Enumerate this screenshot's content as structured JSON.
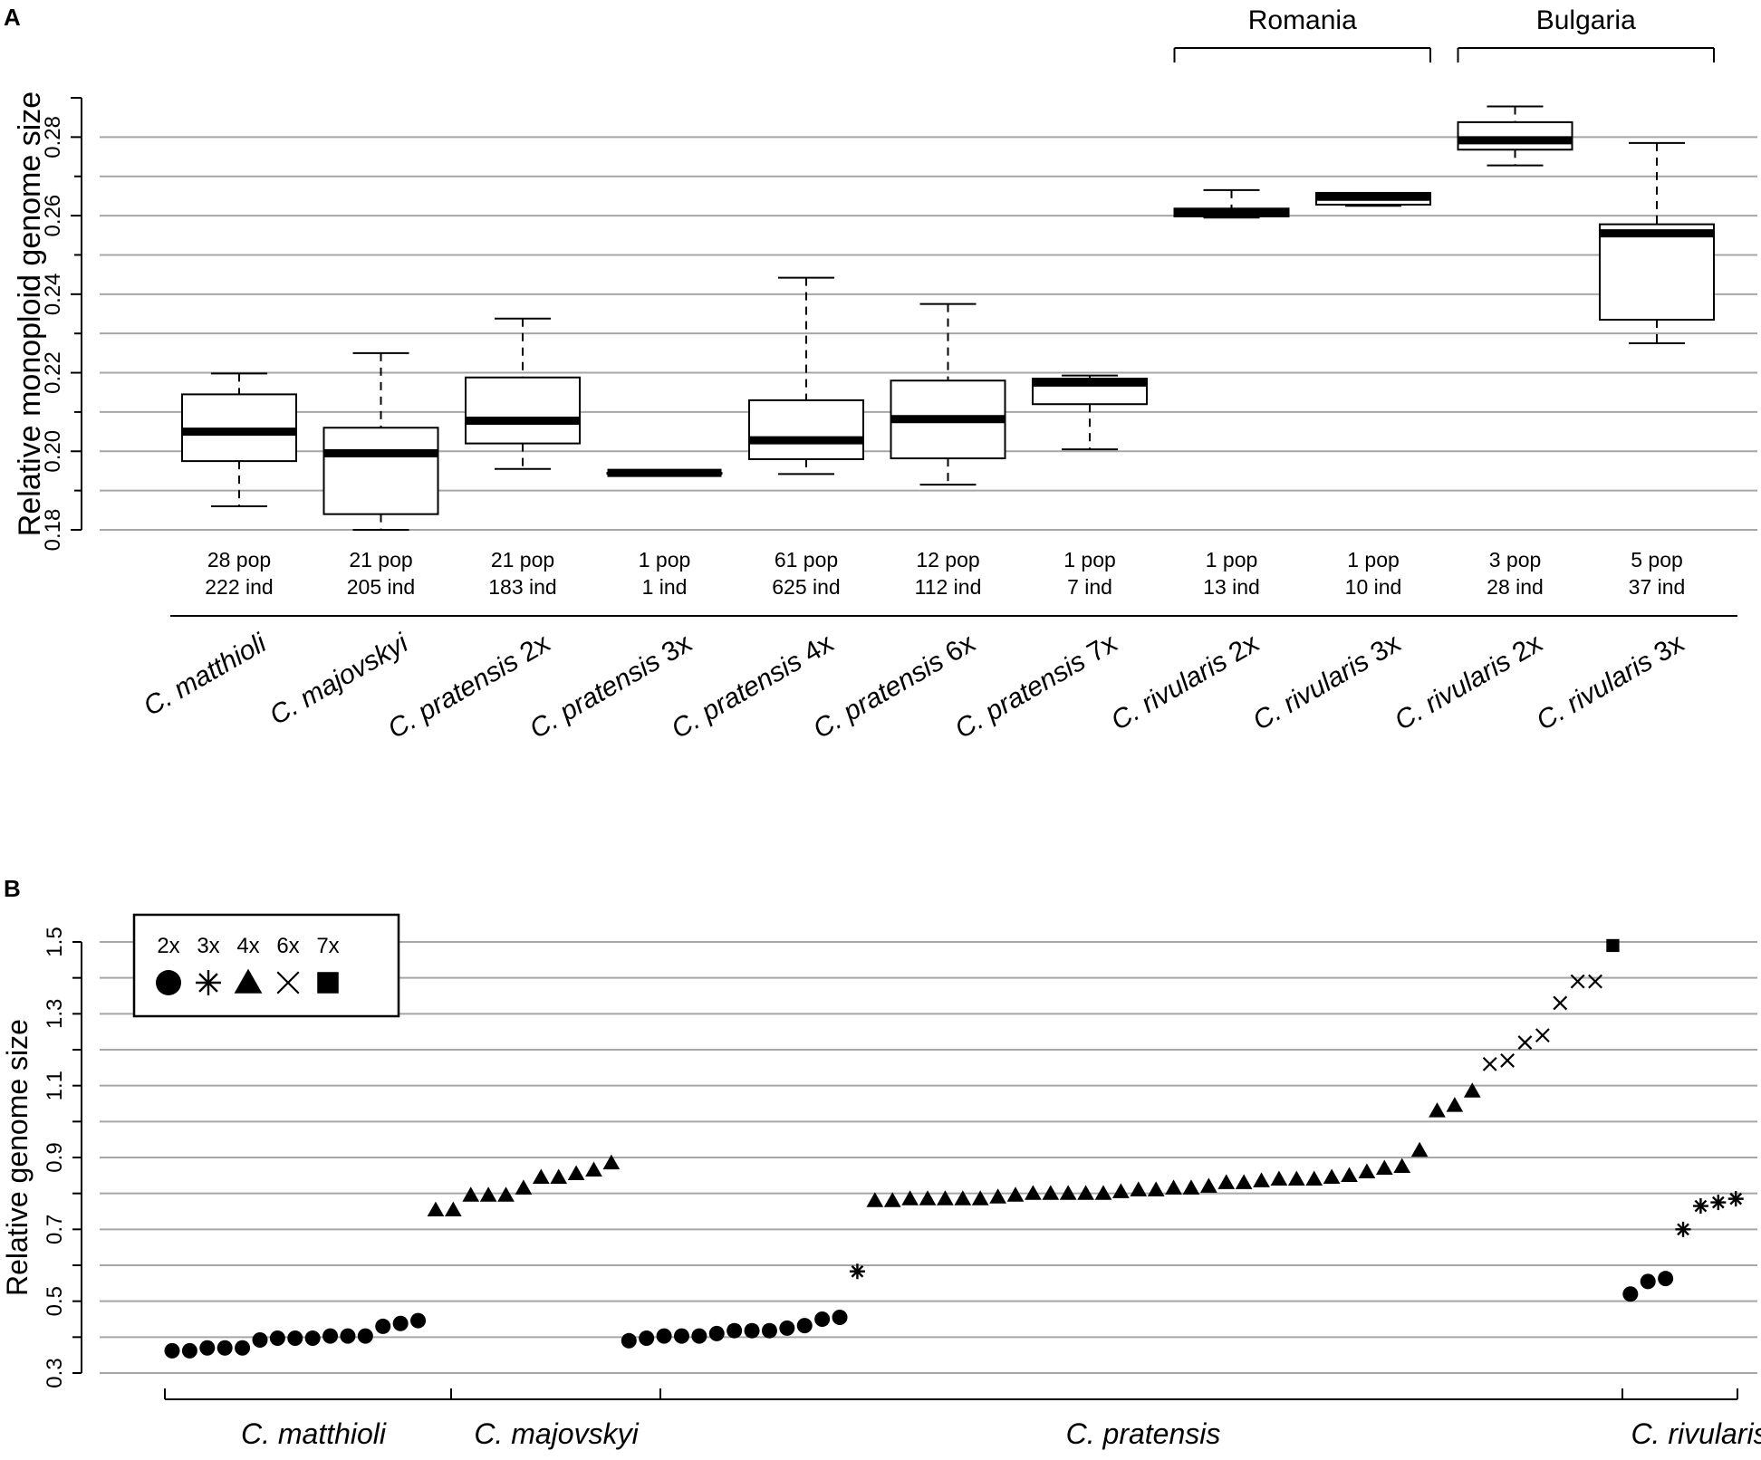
{
  "panel_a": {
    "label": "A"
  },
  "panel_b": {
    "label": "B"
  },
  "chart_data": [
    {
      "type": "box",
      "title": "",
      "ylabel": "Relative monoploid genome size",
      "ylim": [
        0.18,
        0.29
      ],
      "yticks": [
        "0.18",
        "0.20",
        "0.22",
        "0.24",
        "0.26",
        "0.28"
      ],
      "group_headers": [
        {
          "label": "Romania",
          "from": 8,
          "to": 9
        },
        {
          "label": "Bulgaria",
          "from": 10,
          "to": 11
        }
      ],
      "groups": [
        {
          "species": "C. matthioli",
          "ploidy": "",
          "pop": "28 pop",
          "ind": "222 ind",
          "min": 0.186,
          "q1": 0.1975,
          "median": 0.205,
          "q3": 0.2145,
          "max": 0.2198
        },
        {
          "species": "C. majovskyi",
          "ploidy": "",
          "pop": "21 pop",
          "ind": "205 ind",
          "min": 0.18,
          "q1": 0.184,
          "median": 0.1995,
          "q3": 0.206,
          "max": 0.225
        },
        {
          "species": "C. pratensis",
          "ploidy": " 2x",
          "pop": "21 pop",
          "ind": "183 ind",
          "min": 0.1955,
          "q1": 0.202,
          "median": 0.2078,
          "q3": 0.2188,
          "max": 0.2338
        },
        {
          "species": "C. pratensis",
          "ploidy": " 3x",
          "pop": "1 pop",
          "ind": "1 ind",
          "min": 0.1945,
          "q1": 0.1945,
          "median": 0.1945,
          "q3": 0.1945,
          "max": 0.1945
        },
        {
          "species": "C. pratensis",
          "ploidy": " 4x",
          "pop": "61 pop",
          "ind": "625 ind",
          "min": 0.1942,
          "q1": 0.198,
          "median": 0.2028,
          "q3": 0.213,
          "max": 0.2442
        },
        {
          "species": "C. pratensis",
          "ploidy": " 6x",
          "pop": "12 pop",
          "ind": "112 ind",
          "min": 0.1915,
          "q1": 0.1982,
          "median": 0.2082,
          "q3": 0.218,
          "max": 0.2375
        },
        {
          "species": "C. pratensis",
          "ploidy": " 7x",
          "pop": "1 pop",
          "ind": "7 ind",
          "min": 0.2005,
          "q1": 0.212,
          "median": 0.2175,
          "q3": 0.2185,
          "max": 0.2193
        },
        {
          "species": "C. rivularis",
          "ploidy": " 2x",
          "pop": "1 pop",
          "ind": "13 ind",
          "min": 0.2595,
          "q1": 0.2598,
          "median": 0.2608,
          "q3": 0.2618,
          "max": 0.2665
        },
        {
          "species": "C. rivularis",
          "ploidy": " 3x",
          "pop": "1 pop",
          "ind": "10 ind",
          "min": 0.2625,
          "q1": 0.2628,
          "median": 0.2648,
          "q3": 0.2658,
          "max": 0.2658
        },
        {
          "species": "C. rivularis",
          "ploidy": " 2x",
          "pop": "3 pop",
          "ind": "28 ind",
          "min": 0.2728,
          "q1": 0.2768,
          "median": 0.2792,
          "q3": 0.2838,
          "max": 0.2878
        },
        {
          "species": "C. rivularis",
          "ploidy": " 3x",
          "pop": "5 pop",
          "ind": "37 ind",
          "min": 0.2275,
          "q1": 0.2335,
          "median": 0.2555,
          "q3": 0.2578,
          "max": 0.2785
        }
      ]
    },
    {
      "type": "scatter",
      "title": "",
      "ylabel": "Relative genome size",
      "ylim": [
        0.3,
        1.5
      ],
      "yticks": [
        "0.3",
        "0.5",
        "0.7",
        "0.9",
        "1.1",
        "1.3",
        "1.5"
      ],
      "legend": {
        "position": "top-left",
        "entries": [
          {
            "label": "2x",
            "marker": "circle-icon"
          },
          {
            "label": "3x",
            "marker": "asterisk-icon"
          },
          {
            "label": "4x",
            "marker": "triangle-icon"
          },
          {
            "label": "6x",
            "marker": "cross-icon"
          },
          {
            "label": "7x",
            "marker": "square-icon"
          }
        ]
      },
      "species_groups": [
        {
          "label": "C. matthioli",
          "from": 1,
          "to": 14
        },
        {
          "label": "C. majovskyi",
          "from": 15,
          "to": 24
        },
        {
          "label": "C. pratensis",
          "from": 25,
          "to": 80
        },
        {
          "label": "C. rivularis",
          "from": 81,
          "to": 86
        }
      ],
      "points": [
        {
          "x": 1,
          "y": 0.362,
          "p": "2x"
        },
        {
          "x": 2,
          "y": 0.362,
          "p": "2x"
        },
        {
          "x": 3,
          "y": 0.37,
          "p": "2x"
        },
        {
          "x": 4,
          "y": 0.37,
          "p": "2x"
        },
        {
          "x": 5,
          "y": 0.37,
          "p": "2x"
        },
        {
          "x": 6,
          "y": 0.392,
          "p": "2x"
        },
        {
          "x": 7,
          "y": 0.397,
          "p": "2x"
        },
        {
          "x": 8,
          "y": 0.397,
          "p": "2x"
        },
        {
          "x": 9,
          "y": 0.397,
          "p": "2x"
        },
        {
          "x": 10,
          "y": 0.403,
          "p": "2x"
        },
        {
          "x": 11,
          "y": 0.403,
          "p": "2x"
        },
        {
          "x": 12,
          "y": 0.403,
          "p": "2x"
        },
        {
          "x": 13,
          "y": 0.43,
          "p": "2x"
        },
        {
          "x": 14,
          "y": 0.438,
          "p": "2x"
        },
        {
          "x": 15,
          "y": 0.446,
          "p": "2x"
        },
        {
          "x": 16,
          "y": 0.754,
          "p": "4x"
        },
        {
          "x": 17,
          "y": 0.754,
          "p": "4x"
        },
        {
          "x": 18,
          "y": 0.795,
          "p": "4x"
        },
        {
          "x": 19,
          "y": 0.795,
          "p": "4x"
        },
        {
          "x": 20,
          "y": 0.795,
          "p": "4x"
        },
        {
          "x": 21,
          "y": 0.815,
          "p": "4x"
        },
        {
          "x": 22,
          "y": 0.845,
          "p": "4x"
        },
        {
          "x": 23,
          "y": 0.845,
          "p": "4x"
        },
        {
          "x": 24,
          "y": 0.855,
          "p": "4x"
        },
        {
          "x": 25,
          "y": 0.865,
          "p": "4x"
        },
        {
          "x": 26,
          "y": 0.885,
          "p": "4x"
        },
        {
          "x": 27,
          "y": 0.39,
          "p": "2x"
        },
        {
          "x": 28,
          "y": 0.397,
          "p": "2x"
        },
        {
          "x": 29,
          "y": 0.403,
          "p": "2x"
        },
        {
          "x": 30,
          "y": 0.403,
          "p": "2x"
        },
        {
          "x": 31,
          "y": 0.403,
          "p": "2x"
        },
        {
          "x": 32,
          "y": 0.41,
          "p": "2x"
        },
        {
          "x": 33,
          "y": 0.418,
          "p": "2x"
        },
        {
          "x": 34,
          "y": 0.418,
          "p": "2x"
        },
        {
          "x": 35,
          "y": 0.418,
          "p": "2x"
        },
        {
          "x": 36,
          "y": 0.425,
          "p": "2x"
        },
        {
          "x": 37,
          "y": 0.432,
          "p": "2x"
        },
        {
          "x": 38,
          "y": 0.45,
          "p": "2x"
        },
        {
          "x": 39,
          "y": 0.455,
          "p": "2x"
        },
        {
          "x": 40,
          "y": 0.583,
          "p": "3x"
        },
        {
          "x": 41,
          "y": 0.78,
          "p": "4x"
        },
        {
          "x": 42,
          "y": 0.78,
          "p": "4x"
        },
        {
          "x": 43,
          "y": 0.785,
          "p": "4x"
        },
        {
          "x": 44,
          "y": 0.785,
          "p": "4x"
        },
        {
          "x": 45,
          "y": 0.785,
          "p": "4x"
        },
        {
          "x": 46,
          "y": 0.785,
          "p": "4x"
        },
        {
          "x": 47,
          "y": 0.785,
          "p": "4x"
        },
        {
          "x": 48,
          "y": 0.79,
          "p": "4x"
        },
        {
          "x": 49,
          "y": 0.795,
          "p": "4x"
        },
        {
          "x": 50,
          "y": 0.8,
          "p": "4x"
        },
        {
          "x": 51,
          "y": 0.8,
          "p": "4x"
        },
        {
          "x": 52,
          "y": 0.8,
          "p": "4x"
        },
        {
          "x": 53,
          "y": 0.8,
          "p": "4x"
        },
        {
          "x": 54,
          "y": 0.8,
          "p": "4x"
        },
        {
          "x": 55,
          "y": 0.805,
          "p": "4x"
        },
        {
          "x": 56,
          "y": 0.81,
          "p": "4x"
        },
        {
          "x": 57,
          "y": 0.81,
          "p": "4x"
        },
        {
          "x": 58,
          "y": 0.815,
          "p": "4x"
        },
        {
          "x": 59,
          "y": 0.815,
          "p": "4x"
        },
        {
          "x": 60,
          "y": 0.82,
          "p": "4x"
        },
        {
          "x": 61,
          "y": 0.83,
          "p": "4x"
        },
        {
          "x": 62,
          "y": 0.83,
          "p": "4x"
        },
        {
          "x": 63,
          "y": 0.835,
          "p": "4x"
        },
        {
          "x": 64,
          "y": 0.84,
          "p": "4x"
        },
        {
          "x": 65,
          "y": 0.84,
          "p": "4x"
        },
        {
          "x": 66,
          "y": 0.84,
          "p": "4x"
        },
        {
          "x": 67,
          "y": 0.845,
          "p": "4x"
        },
        {
          "x": 68,
          "y": 0.85,
          "p": "4x"
        },
        {
          "x": 69,
          "y": 0.86,
          "p": "4x"
        },
        {
          "x": 70,
          "y": 0.87,
          "p": "4x"
        },
        {
          "x": 71,
          "y": 0.875,
          "p": "4x"
        },
        {
          "x": 72,
          "y": 0.92,
          "p": "4x"
        },
        {
          "x": 73,
          "y": 1.03,
          "p": "4x"
        },
        {
          "x": 74,
          "y": 1.045,
          "p": "4x"
        },
        {
          "x": 75,
          "y": 1.085,
          "p": "4x"
        },
        {
          "x": 76,
          "y": 1.16,
          "p": "6x"
        },
        {
          "x": 77,
          "y": 1.17,
          "p": "6x"
        },
        {
          "x": 78,
          "y": 1.22,
          "p": "6x"
        },
        {
          "x": 79,
          "y": 1.24,
          "p": "6x"
        },
        {
          "x": 80,
          "y": 1.33,
          "p": "6x"
        },
        {
          "x": 81,
          "y": 1.39,
          "p": "6x"
        },
        {
          "x": 82,
          "y": 1.39,
          "p": "6x"
        },
        {
          "x": 83,
          "y": 1.49,
          "p": "7x"
        },
        {
          "x": 84,
          "y": 0.52,
          "p": "2x"
        },
        {
          "x": 85,
          "y": 0.555,
          "p": "2x"
        },
        {
          "x": 86,
          "y": 0.563,
          "p": "2x"
        },
        {
          "x": 87,
          "y": 0.7,
          "p": "3x"
        },
        {
          "x": 88,
          "y": 0.765,
          "p": "3x"
        },
        {
          "x": 89,
          "y": 0.775,
          "p": "3x"
        },
        {
          "x": 90,
          "y": 0.785,
          "p": "3x"
        }
      ]
    }
  ]
}
